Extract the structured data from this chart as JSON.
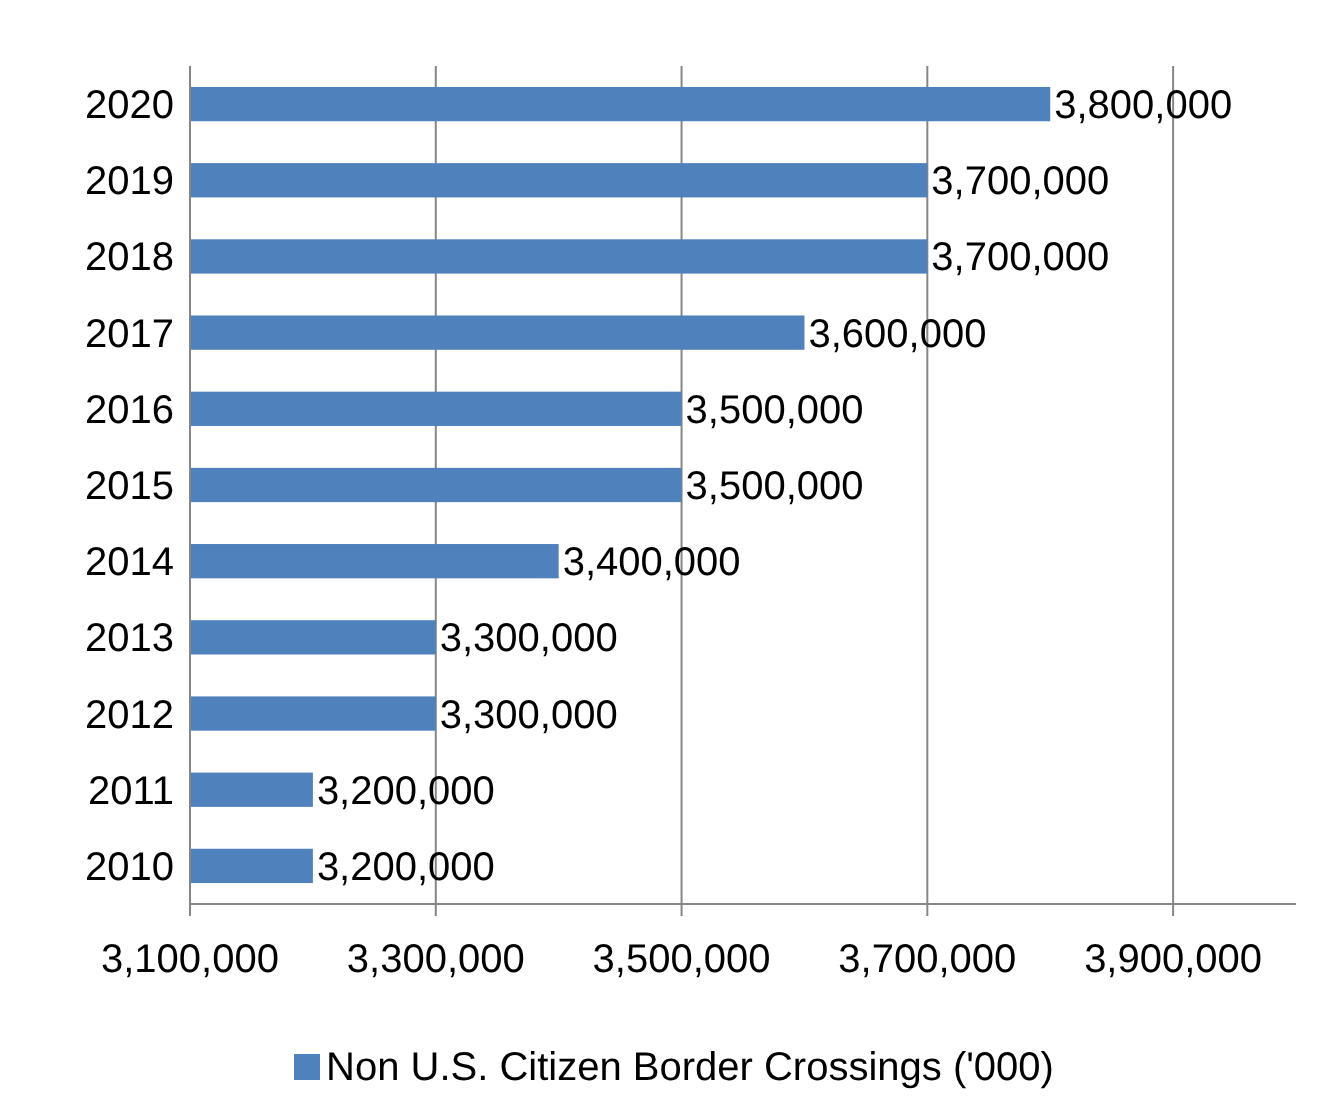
{
  "chart_data": {
    "type": "bar",
    "orientation": "horizontal",
    "categories": [
      "2020",
      "2019",
      "2018",
      "2017",
      "2016",
      "2015",
      "2014",
      "2013",
      "2012",
      "2011",
      "2010"
    ],
    "series": [
      {
        "name": "Non U.S. Citizen Border Crossings ('000)",
        "color": "#4f81bd",
        "values": [
          3800000,
          3700000,
          3700000,
          3600000,
          3500000,
          3500000,
          3400000,
          3300000,
          3300000,
          3200000,
          3200000
        ],
        "value_labels": [
          "3,800,000",
          "3,700,000",
          "3,700,000",
          "3,600,000",
          "3,500,000",
          "3,500,000",
          "3,400,000",
          "3,300,000",
          "3,300,000",
          "3,200,000",
          "3,200,000"
        ]
      }
    ],
    "xlim": [
      3100000,
      4000000
    ],
    "xticks": [
      {
        "value": 3100000,
        "label": "3,100,000"
      },
      {
        "value": 3300000,
        "label": "3,300,000"
      },
      {
        "value": 3500000,
        "label": "3,500,000"
      },
      {
        "value": 3700000,
        "label": "3,700,000"
      },
      {
        "value": 3900000,
        "label": "3,900,000"
      }
    ],
    "grid": "x",
    "legend": "bottom"
  }
}
